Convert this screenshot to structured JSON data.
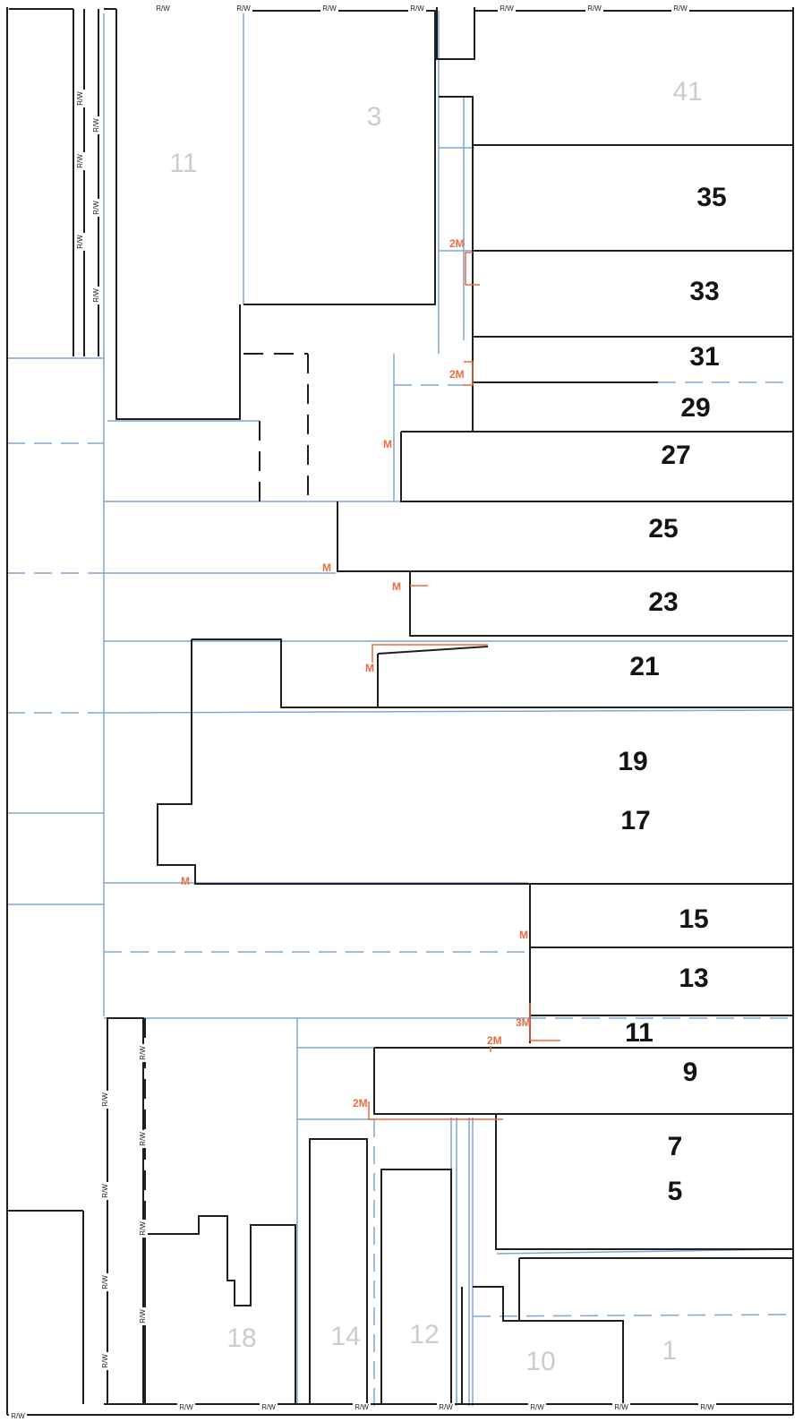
{
  "colors": {
    "boundary": "#1f1f1f",
    "parcel_line": "#7ea6d6",
    "marker": "#ee6a43",
    "label_black": "#141414",
    "label_faint": "#cccccc"
  },
  "right_of_way_label": "R/W",
  "lot_labels_black": [
    "35",
    "33",
    "31",
    "29",
    "27",
    "25",
    "23",
    "21",
    "19",
    "17",
    "15",
    "13",
    "11",
    "9",
    "7",
    "5"
  ],
  "lot_labels_faint": [
    "41",
    "3",
    "11",
    "18",
    "14",
    "12",
    "10",
    "1"
  ],
  "markers": [
    "2M",
    "2M",
    "M",
    "M",
    "M",
    "M",
    "M",
    "M",
    "3M",
    "2M",
    "2M"
  ]
}
